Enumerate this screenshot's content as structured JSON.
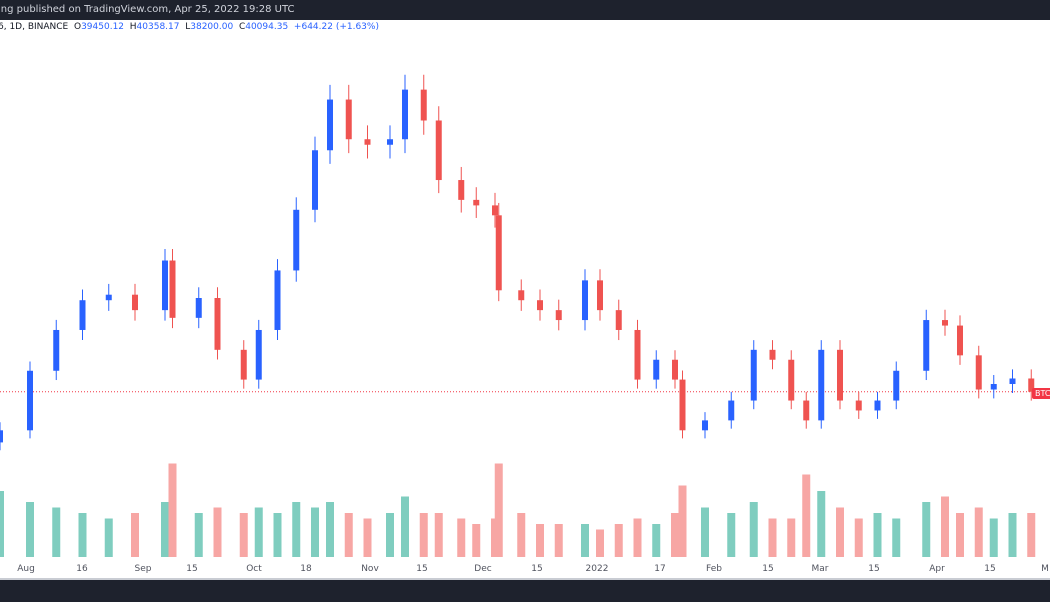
{
  "header": {
    "published": "ing published on TradingView.com, Apr 25, 2022 19:28 UTC"
  },
  "legend": {
    "symbol": "6, 1D, BINANCE",
    "open_label": "O",
    "open": "39450.12",
    "high_label": "H",
    "high": "40358.17",
    "low_label": "L",
    "low": "38200.00",
    "close_label": "C",
    "close": "40094.35",
    "change": "+644.22 (+1.63%)"
  },
  "price_badge": "BTC",
  "colors": {
    "up": "#2962ff",
    "down": "#ef5350",
    "vol_up": "#7fcdbf",
    "vol_down": "#f7a6a4",
    "last_line": "#f23645"
  },
  "chart_data": {
    "type": "candlestick",
    "last_price": 40094.35,
    "x_tick_labels": [
      "Aug",
      "16",
      "Sep",
      "15",
      "Oct",
      "18",
      "Nov",
      "15",
      "Dec",
      "15",
      "2022",
      "17",
      "Feb",
      "15",
      "Mar",
      "15",
      "Apr",
      "15",
      "M"
    ],
    "closes_sampled": [
      [
        "2021-07-24",
        36600
      ],
      [
        "2021-08-01",
        42000
      ],
      [
        "2021-08-08",
        45700
      ],
      [
        "2021-08-15",
        48400
      ],
      [
        "2021-08-22",
        48900
      ],
      [
        "2021-08-29",
        47500
      ],
      [
        "2021-09-06",
        52000
      ],
      [
        "2021-09-08",
        46800
      ],
      [
        "2021-09-15",
        48600
      ],
      [
        "2021-09-20",
        43900
      ],
      [
        "2021-09-27",
        41200
      ],
      [
        "2021-10-01",
        45700
      ],
      [
        "2021-10-06",
        51100
      ],
      [
        "2021-10-11",
        56600
      ],
      [
        "2021-10-16",
        62000
      ],
      [
        "2021-10-20",
        66600
      ],
      [
        "2021-10-25",
        63000
      ],
      [
        "2021-10-30",
        62500
      ],
      [
        "2021-11-05",
        63000
      ],
      [
        "2021-11-09",
        67500
      ],
      [
        "2021-11-14",
        64700
      ],
      [
        "2021-11-18",
        59300
      ],
      [
        "2021-11-24",
        57500
      ],
      [
        "2021-11-28",
        57000
      ],
      [
        "2021-12-03",
        56100
      ],
      [
        "2021-12-04",
        49300
      ],
      [
        "2021-12-10",
        48400
      ],
      [
        "2021-12-15",
        47500
      ],
      [
        "2021-12-20",
        46600
      ],
      [
        "2021-12-27",
        50200
      ],
      [
        "2021-12-31",
        47500
      ],
      [
        "2022-01-05",
        45700
      ],
      [
        "2022-01-10",
        41200
      ],
      [
        "2022-01-15",
        43000
      ],
      [
        "2022-01-20",
        41200
      ],
      [
        "2022-01-22",
        36600
      ],
      [
        "2022-01-28",
        37500
      ],
      [
        "2022-02-04",
        39300
      ],
      [
        "2022-02-10",
        43900
      ],
      [
        "2022-02-15",
        43000
      ],
      [
        "2022-02-20",
        39300
      ],
      [
        "2022-02-24",
        37500
      ],
      [
        "2022-02-28",
        43900
      ],
      [
        "2022-03-05",
        39300
      ],
      [
        "2022-03-10",
        38400
      ],
      [
        "2022-03-15",
        39300
      ],
      [
        "2022-03-20",
        42000
      ],
      [
        "2022-03-28",
        46600
      ],
      [
        "2022-04-02",
        46100
      ],
      [
        "2022-04-06",
        43400
      ],
      [
        "2022-04-11",
        40300
      ],
      [
        "2022-04-15",
        40800
      ],
      [
        "2022-04-20",
        41300
      ],
      [
        "2022-04-25",
        40094
      ]
    ],
    "volume_relative": [
      0.6,
      0.5,
      0.45,
      0.4,
      0.35,
      0.4,
      0.5,
      0.85,
      0.4,
      0.45,
      0.4,
      0.45,
      0.4,
      0.5,
      0.45,
      0.5,
      0.4,
      0.35,
      0.4,
      0.55,
      0.4,
      0.4,
      0.35,
      0.3,
      0.35,
      0.85,
      0.4,
      0.3,
      0.3,
      0.3,
      0.25,
      0.3,
      0.35,
      0.3,
      0.4,
      0.65,
      0.45,
      0.4,
      0.5,
      0.35,
      0.35,
      0.75,
      0.6,
      0.45,
      0.35,
      0.4,
      0.35,
      0.5,
      0.55,
      0.4,
      0.45,
      0.35,
      0.4,
      0.4
    ]
  }
}
